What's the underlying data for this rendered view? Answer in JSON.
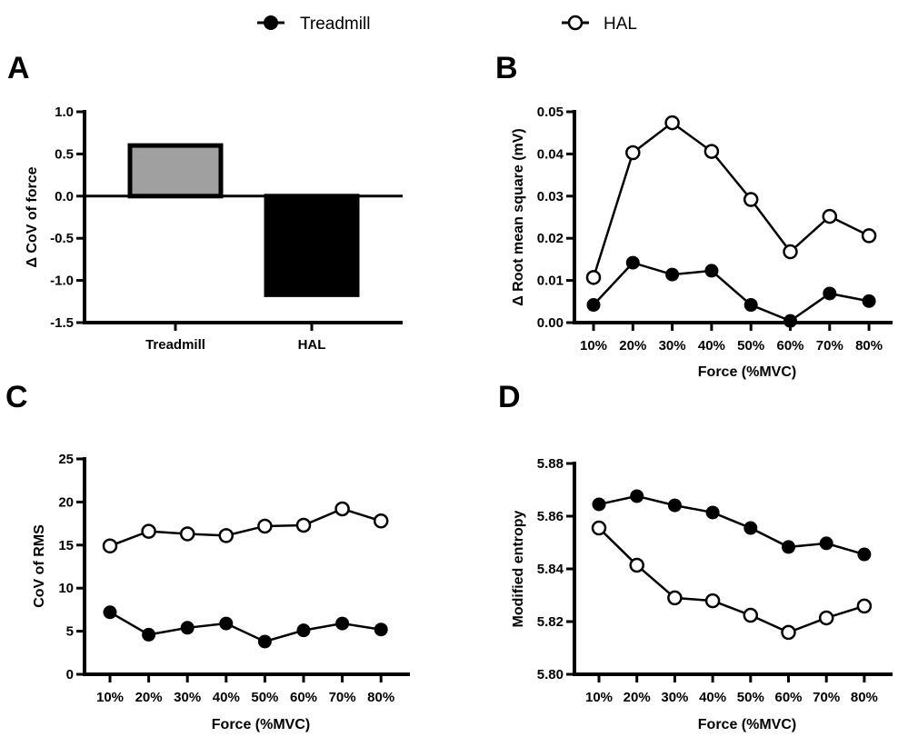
{
  "legend": {
    "items": [
      {
        "name": "Treadmill",
        "marker": "filled-circle"
      },
      {
        "name": "HAL",
        "marker": "open-circle"
      }
    ]
  },
  "colors": {
    "treadmill_bar": "#a0a0a0",
    "hal_bar": "#000000",
    "line": "#000000",
    "open_fill": "#ffffff"
  },
  "chart_data": [
    {
      "panel": "A",
      "type": "bar",
      "title": "",
      "xlabel": "",
      "ylabel": "Δ CoV of force",
      "categories": [
        "Treadmill",
        "HAL"
      ],
      "values": [
        0.6,
        -1.17
      ],
      "ylim": [
        -1.5,
        1.0
      ],
      "yticks": [
        1.0,
        0.5,
        0.0,
        -0.5,
        -1.0,
        -1.5
      ],
      "ytick_labels": [
        "1.0",
        "0.5",
        "0.0",
        "-0.5",
        "-1.0",
        "-1.5"
      ],
      "grid": false
    },
    {
      "panel": "B",
      "type": "line",
      "xlabel": "Force (%MVC)",
      "ylabel": "Δ Root mean square (mV)",
      "categories": [
        "10%",
        "20%",
        "30%",
        "40%",
        "50%",
        "60%",
        "70%",
        "80%"
      ],
      "ylim": [
        0.0,
        0.05
      ],
      "yticks": [
        0.0,
        0.01,
        0.02,
        0.03,
        0.04,
        0.05
      ],
      "ytick_labels": [
        "0.00",
        "0.01",
        "0.02",
        "0.03",
        "0.04",
        "0.05"
      ],
      "series": [
        {
          "name": "Treadmill",
          "marker": "filled",
          "values": [
            0.0042,
            0.0142,
            0.0114,
            0.0123,
            0.0042,
            0.0004,
            0.0069,
            0.0051
          ]
        },
        {
          "name": "HAL",
          "marker": "open",
          "values": [
            0.0107,
            0.0403,
            0.0474,
            0.0406,
            0.0292,
            0.0168,
            0.0252,
            0.0206
          ]
        }
      ],
      "grid": false
    },
    {
      "panel": "C",
      "type": "line",
      "xlabel": "Force (%MVC)",
      "ylabel": "CoV of RMS",
      "categories": [
        "10%",
        "20%",
        "30%",
        "40%",
        "50%",
        "60%",
        "70%",
        "80%"
      ],
      "ylim": [
        0,
        25
      ],
      "yticks": [
        0,
        5,
        10,
        15,
        20,
        25
      ],
      "ytick_labels": [
        "0",
        "5",
        "10",
        "15",
        "20",
        "25"
      ],
      "series": [
        {
          "name": "Treadmill",
          "marker": "filled",
          "values": [
            7.2,
            4.6,
            5.4,
            5.9,
            3.8,
            5.1,
            5.9,
            5.2
          ]
        },
        {
          "name": "HAL",
          "marker": "open",
          "values": [
            14.9,
            16.6,
            16.3,
            16.1,
            17.2,
            17.3,
            19.2,
            17.8
          ]
        }
      ],
      "grid": false
    },
    {
      "panel": "D",
      "type": "line",
      "xlabel": "Force (%MVC)",
      "ylabel": "Modified entropy",
      "categories": [
        "10%",
        "20%",
        "30%",
        "40%",
        "50%",
        "60%",
        "70%",
        "80%"
      ],
      "ylim": [
        5.8,
        5.88
      ],
      "yticks": [
        5.8,
        5.82,
        5.84,
        5.86,
        5.88
      ],
      "ytick_labels": [
        "5.80",
        "5.82",
        "5.84",
        "5.86",
        "5.88"
      ],
      "series": [
        {
          "name": "Treadmill",
          "marker": "filled",
          "values": [
            5.8645,
            5.8676,
            5.8641,
            5.8614,
            5.8555,
            5.8483,
            5.8497,
            5.8455
          ]
        },
        {
          "name": "HAL",
          "marker": "open",
          "values": [
            5.8555,
            5.8414,
            5.829,
            5.8279,
            5.8224,
            5.8159,
            5.8214,
            5.8259
          ]
        }
      ],
      "grid": false
    }
  ]
}
